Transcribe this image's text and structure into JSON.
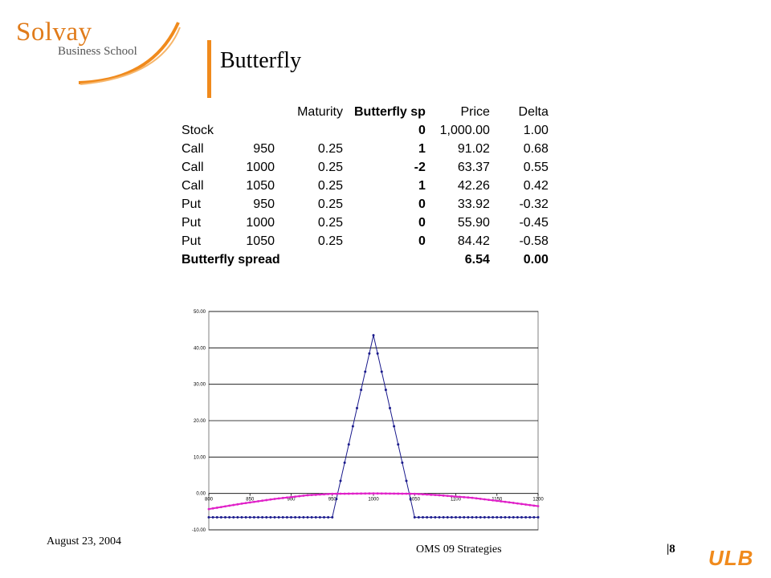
{
  "logo": {
    "name": "Solvay",
    "subtitle": "Business School"
  },
  "slide": {
    "title": "Butterfly"
  },
  "table": {
    "headers": [
      "",
      "",
      "Maturity",
      "Butterfly sp",
      "Price",
      "Delta"
    ],
    "rows": [
      [
        "Stock",
        "",
        "",
        "0",
        "1,000.00",
        "1.00"
      ],
      [
        "Call",
        "950",
        "0.25",
        "1",
        "91.02",
        "0.68"
      ],
      [
        "Call",
        "1000",
        "0.25",
        "-2",
        "63.37",
        "0.55"
      ],
      [
        "Call",
        "1050",
        "0.25",
        "1",
        "42.26",
        "0.42"
      ],
      [
        "Put",
        "950",
        "0.25",
        "0",
        "33.92",
        "-0.32"
      ],
      [
        "Put",
        "1000",
        "0.25",
        "0",
        "55.90",
        "-0.45"
      ],
      [
        "Put",
        "1050",
        "0.25",
        "0",
        "84.42",
        "-0.58"
      ]
    ],
    "total": [
      "Butterfly spread",
      "",
      "",
      "",
      "6.54",
      "0.00"
    ]
  },
  "chart_data": {
    "type": "line",
    "title": "",
    "xlabel": "",
    "ylabel": "",
    "xlim": [
      800,
      1200
    ],
    "ylim": [
      -10,
      50
    ],
    "x_ticks": [
      "800",
      "850",
      "900",
      "950",
      "1000",
      "1050",
      "1100",
      "1150",
      "1200"
    ],
    "y_ticks": [
      "-10.00",
      "0.00",
      "10.00",
      "20.00",
      "30.00",
      "40.00",
      "50.00"
    ],
    "grid": "horizontal",
    "colors": {
      "payoff": "#1a1a8c",
      "value": "#e020c8"
    },
    "series": [
      {
        "name": "",
        "color": "#1a1a8c",
        "x": [
          800,
          950,
          1000,
          1050,
          1200
        ],
        "y": [
          -6.54,
          -6.54,
          43.46,
          -6.54,
          -6.54
        ]
      },
      {
        "name": "",
        "color": "#e020c8",
        "x": [
          800,
          840,
          880,
          920,
          950,
          1000,
          1050,
          1080,
          1120,
          1160,
          1200
        ],
        "y": [
          -4.3,
          -2.8,
          -1.5,
          -0.5,
          -0.1,
          0.0,
          -0.1,
          -0.5,
          -1.2,
          -2.3,
          -3.5
        ]
      }
    ]
  },
  "footer": {
    "date": "August 23, 2004",
    "title": "OMS 09 Strategies",
    "page": "|8",
    "ulb": "ULB"
  }
}
